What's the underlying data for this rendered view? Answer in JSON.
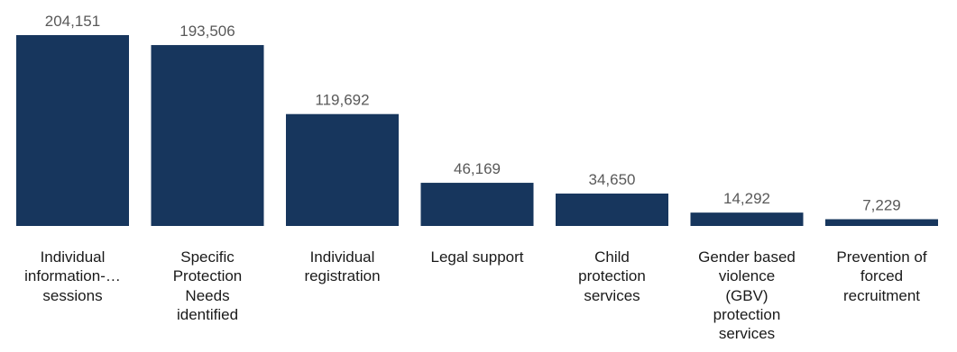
{
  "chart_data": {
    "type": "bar",
    "title": "",
    "xlabel": "",
    "ylabel": "",
    "categories": [
      "Individual information-… sessions",
      "Specific Protection Needs identified",
      "Individual registration",
      "Legal support",
      "Child protection services",
      "Gender based violence (GBV) protection services",
      "Prevention of forced recruitment"
    ],
    "category_lines": [
      [
        "Individual",
        "information-…",
        "sessions"
      ],
      [
        "Specific",
        "Protection",
        "Needs",
        "identified"
      ],
      [
        "Individual",
        "registration"
      ],
      [
        "Legal support"
      ],
      [
        "Child",
        "protection",
        "services"
      ],
      [
        "Gender based",
        "violence",
        "(GBV)",
        "protection",
        "services"
      ],
      [
        "Prevention of",
        "forced",
        "recruitment"
      ]
    ],
    "values": [
      204151,
      193506,
      119692,
      46169,
      34650,
      14292,
      7229
    ],
    "value_labels": [
      "204,151",
      "193,506",
      "119,692",
      "46,169",
      "34,650",
      "14,292",
      "7,229"
    ],
    "ylim": [
      0,
      204151
    ],
    "grid": false,
    "legend": "none",
    "bar_color": "#17365d"
  }
}
